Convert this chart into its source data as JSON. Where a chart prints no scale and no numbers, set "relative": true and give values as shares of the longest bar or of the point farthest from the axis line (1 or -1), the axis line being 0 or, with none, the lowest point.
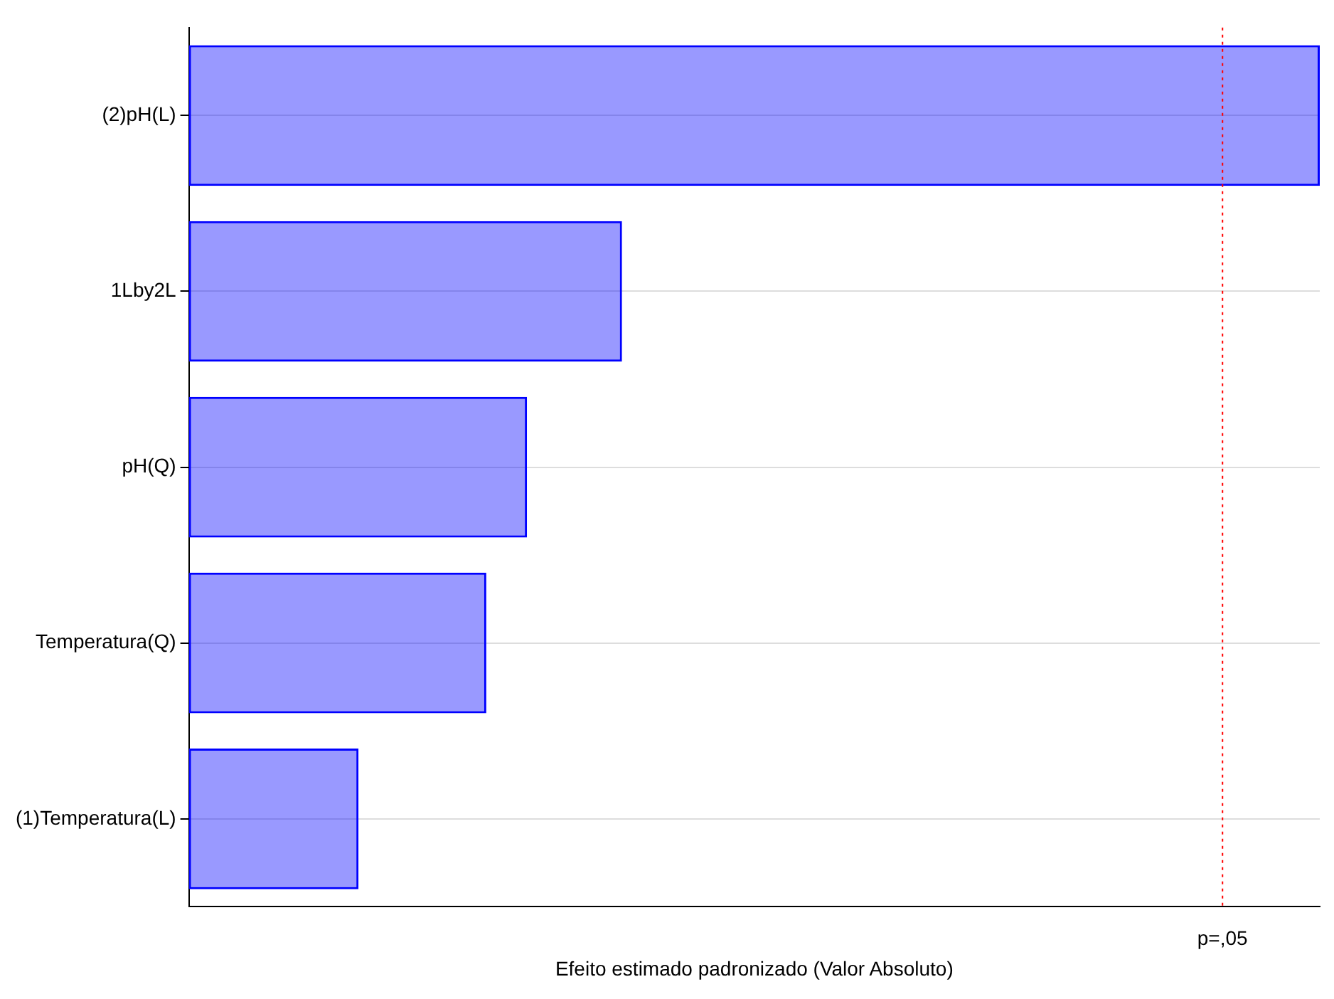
{
  "chart_data": {
    "type": "bar",
    "orientation": "horizontal",
    "relative": true,
    "xlabel": "Efeito estimado padronizado (Valor Absoluto)",
    "categories": [
      "(2)pH(L)",
      "1Lby2L",
      "pH(Q)",
      "Temperatura(Q)",
      "(1)Temperatura(L)"
    ],
    "values": [
      1,
      0.383,
      0.299,
      0.263,
      0.15
    ],
    "color": "#0000ff",
    "grid": "y",
    "ref_lines": [
      {
        "axis": "x",
        "value": 0.914,
        "label": "p=,05",
        "color": "#ff0000",
        "line_style": "dotted"
      }
    ]
  }
}
